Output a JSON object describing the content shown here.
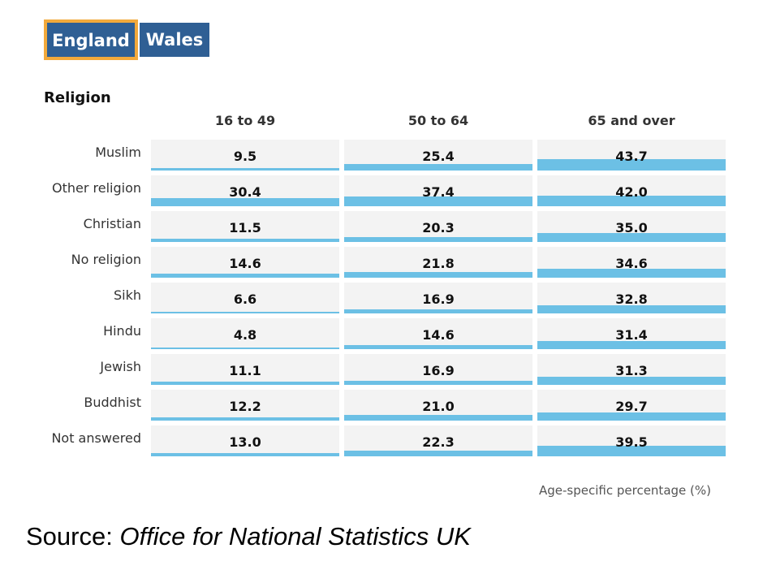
{
  "tabs": [
    {
      "label": "England",
      "active": true
    },
    {
      "label": "Wales",
      "active": false
    }
  ],
  "colors": {
    "bar": "#6cc0e5",
    "cell_bg": "#f3f3f3",
    "tab_bg": "#2f5f94",
    "tab_active_border": "#f2a93b"
  },
  "chart_data": {
    "type": "table",
    "row_header": "Religion",
    "columns": [
      "16 to 49",
      "50 to 64",
      "65 and over"
    ],
    "rows": [
      {
        "label": "Muslim",
        "values": [
          9.5,
          25.4,
          43.7
        ]
      },
      {
        "label": "Other religion",
        "values": [
          30.4,
          37.4,
          42.0
        ]
      },
      {
        "label": "Christian",
        "values": [
          11.5,
          20.3,
          35.0
        ]
      },
      {
        "label": "No religion",
        "values": [
          14.6,
          21.8,
          34.6
        ]
      },
      {
        "label": "Sikh",
        "values": [
          6.6,
          16.9,
          32.8
        ]
      },
      {
        "label": "Hindu",
        "values": [
          4.8,
          14.6,
          31.4
        ]
      },
      {
        "label": "Jewish",
        "values": [
          11.1,
          16.9,
          31.3
        ]
      },
      {
        "label": "Buddhist",
        "values": [
          12.2,
          21.0,
          29.7
        ]
      },
      {
        "label": "Not answered",
        "values": [
          13.0,
          22.3,
          39.5
        ]
      }
    ],
    "unit_label": "Age-specific percentage (%)"
  },
  "source": {
    "prefix": "Source: ",
    "name": "Office for National Statistics UK"
  }
}
